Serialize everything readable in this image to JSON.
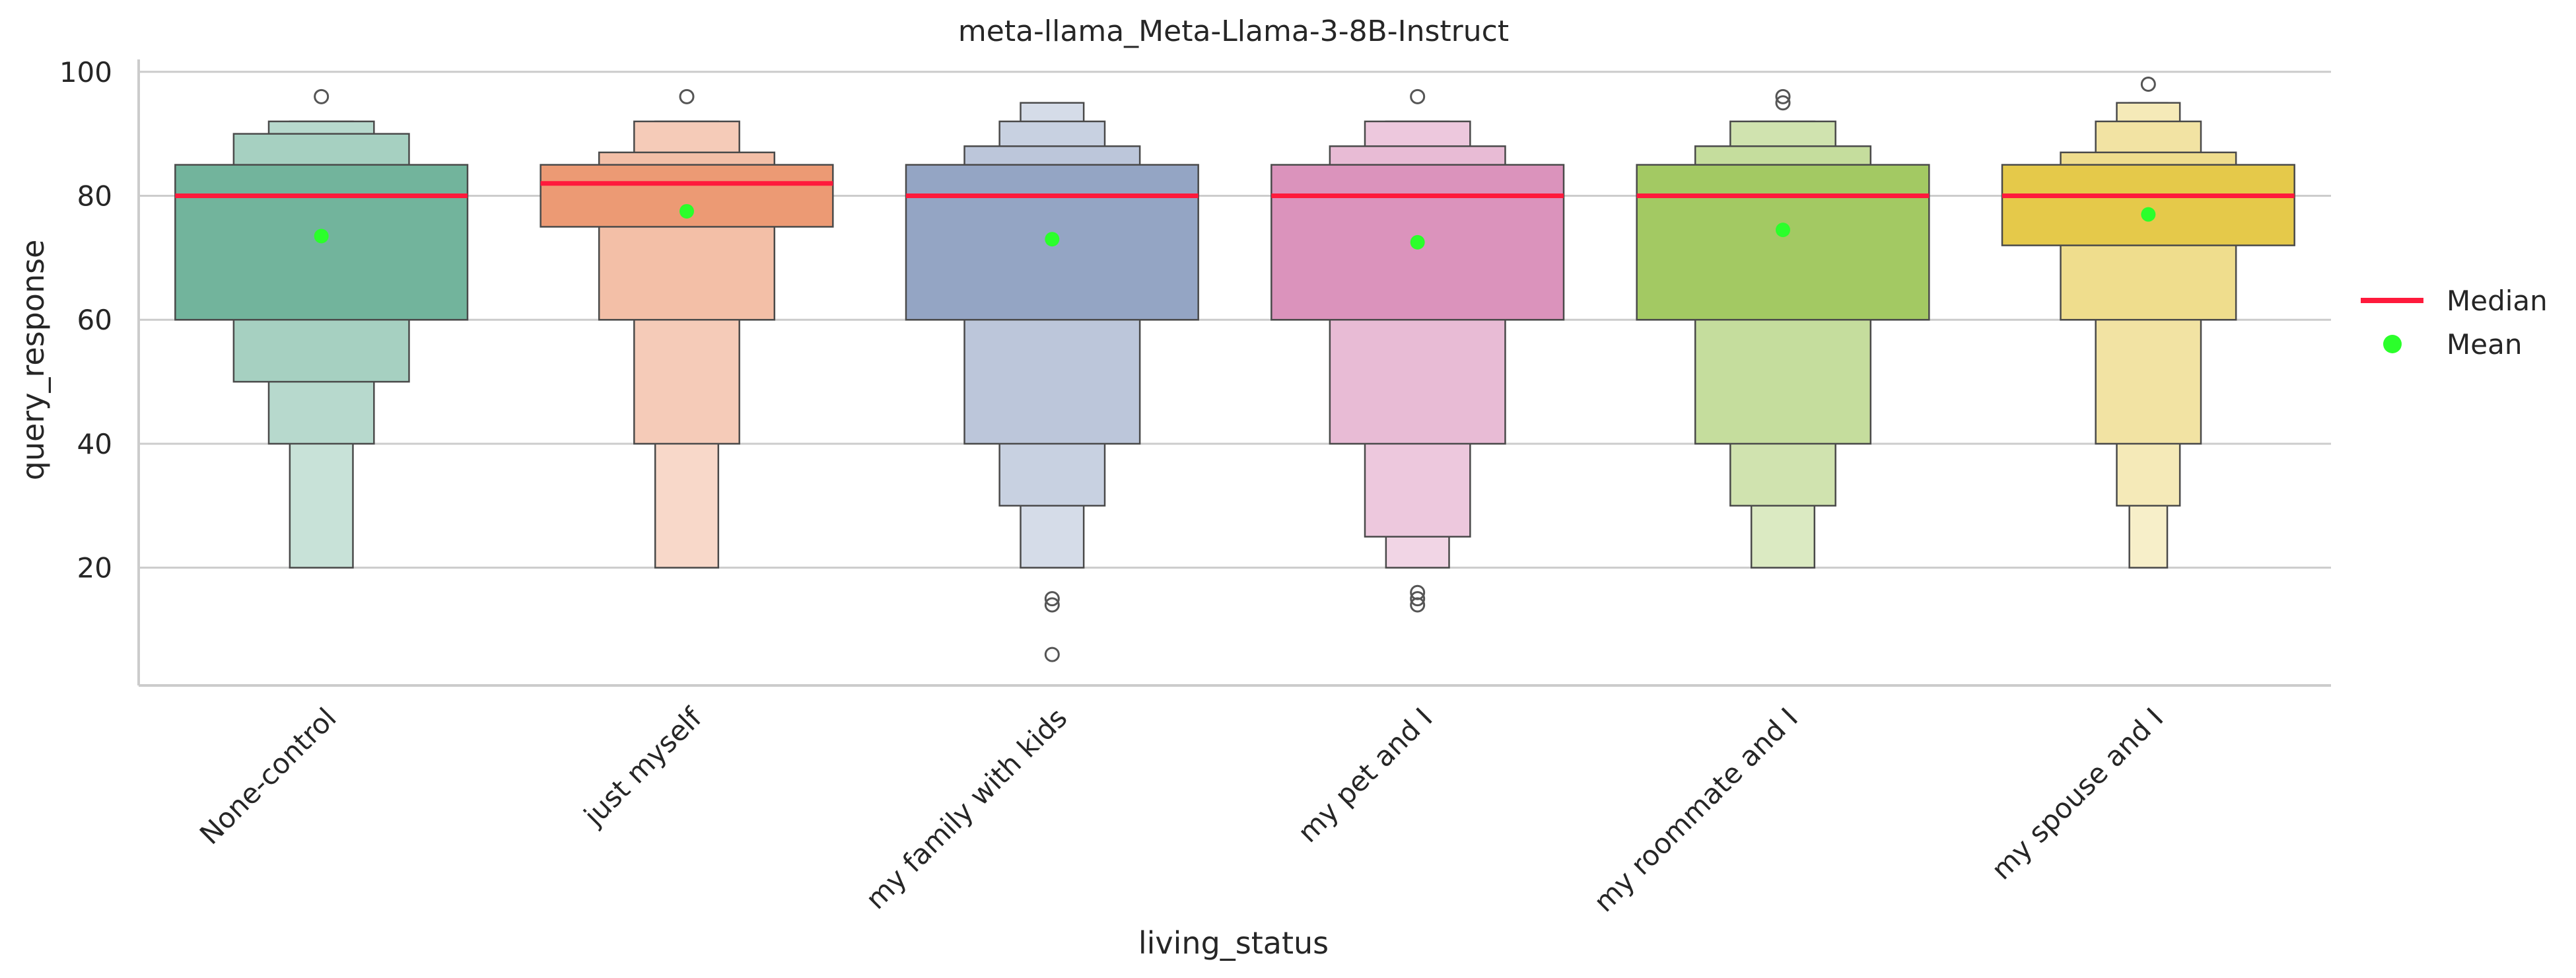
{
  "chart_data": {
    "type": "boxen",
    "title": "meta-llama_Meta-Llama-3-8B-Instruct",
    "xlabel": "living_status",
    "ylabel": "query_response",
    "ylim": [
      1,
      102
    ],
    "yticks": [
      20,
      40,
      60,
      80,
      100
    ],
    "grid": "horizontal",
    "legend": {
      "placement": "right",
      "entries": [
        {
          "label": "Median",
          "kind": "line",
          "color": "#ff1a3c"
        },
        {
          "label": "Mean",
          "kind": "point",
          "color": "#2bff2b"
        }
      ]
    },
    "categories": [
      "None-control",
      "just myself",
      "my family with kids",
      "my pet and I",
      "my roommate and I",
      "my spouse and I"
    ],
    "colors": [
      "#72b49c",
      "#ec9a74",
      "#94a5c4",
      "#db93bc",
      "#a3c963",
      "#e5c94a"
    ],
    "groups": [
      {
        "median": 80,
        "mean": 73.5,
        "levels": [
          {
            "low": 60,
            "high": 85
          },
          {
            "low": 50,
            "high": 90
          },
          {
            "low": 40,
            "high": 92
          },
          {
            "low": 20,
            "high": 92
          }
        ],
        "outliers": [
          96
        ]
      },
      {
        "median": 82,
        "mean": 77.5,
        "levels": [
          {
            "low": 75,
            "high": 85
          },
          {
            "low": 60,
            "high": 87
          },
          {
            "low": 40,
            "high": 92
          },
          {
            "low": 20,
            "high": 92
          }
        ],
        "outliers": [
          96
        ]
      },
      {
        "median": 80,
        "mean": 73,
        "levels": [
          {
            "low": 60,
            "high": 85
          },
          {
            "low": 40,
            "high": 88
          },
          {
            "low": 30,
            "high": 92
          },
          {
            "low": 20,
            "high": 95
          }
        ],
        "outliers": [
          15,
          14,
          6
        ]
      },
      {
        "median": 80,
        "mean": 72.5,
        "levels": [
          {
            "low": 60,
            "high": 85
          },
          {
            "low": 40,
            "high": 88
          },
          {
            "low": 25,
            "high": 92
          },
          {
            "low": 20,
            "high": 92
          }
        ],
        "outliers": [
          96,
          16,
          15,
          14
        ]
      },
      {
        "median": 80,
        "mean": 74.5,
        "levels": [
          {
            "low": 60,
            "high": 85
          },
          {
            "low": 40,
            "high": 88
          },
          {
            "low": 30,
            "high": 92
          },
          {
            "low": 20,
            "high": 92
          }
        ],
        "outliers": [
          96,
          95
        ]
      },
      {
        "median": 80,
        "mean": 77,
        "levels": [
          {
            "low": 72,
            "high": 85
          },
          {
            "low": 60,
            "high": 87
          },
          {
            "low": 40,
            "high": 92
          },
          {
            "low": 30,
            "high": 95
          },
          {
            "low": 20,
            "high": 95
          }
        ],
        "outliers": [
          98
        ]
      }
    ]
  }
}
